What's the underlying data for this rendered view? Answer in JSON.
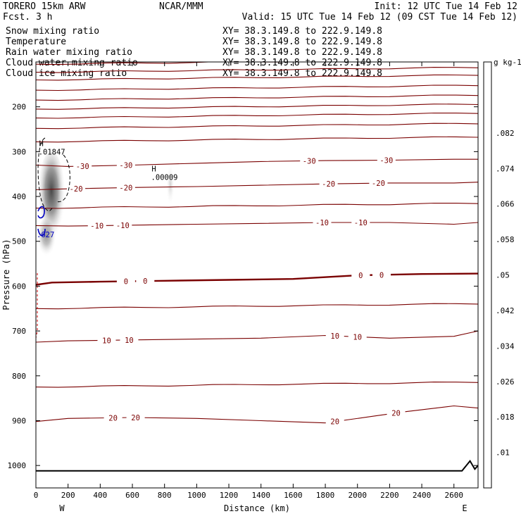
{
  "header": {
    "model": "TORERO  15km ARW",
    "forecast": "Fcst.   3 h",
    "center": "NCAR/MMM",
    "init": "Init: 12 UTC Tue 14 Feb 12",
    "valid": "Valid: 15 UTC Tue 14 Feb 12 (09 CST Tue 14 Feb 12)"
  },
  "legend": [
    {
      "label": "Snow mixing ratio",
      "color": "#000000",
      "xy": "XY=  38.3.149.8 to 222.9.149.8"
    },
    {
      "label": "Temperature",
      "color": "#b00000",
      "xy": "XY=  38.3.149.8 to 222.9.149.8"
    },
    {
      "label": "Rain water mixing ratio",
      "color": "#d00000",
      "xy": "XY=  38.3.149.8 to 222.9.149.8"
    },
    {
      "label": "Cloud water mixing ratio",
      "color": "#0000c0",
      "xy": "XY=  38.3.149.8 to 222.9.149.8"
    },
    {
      "label": "Cloud ice mixing ratio",
      "color": "#000000",
      "xy": "XY=  38.3.149.8 to 222.9.149.8"
    }
  ],
  "chart_data": {
    "type": "cross-section",
    "xlabel": "Distance (km)",
    "ylabel": "Pressure (hPa)",
    "xlim": [
      0,
      2750
    ],
    "ylim": [
      1050,
      100
    ],
    "x_ticks": [
      0,
      200,
      400,
      600,
      800,
      1000,
      1200,
      1400,
      1600,
      1800,
      2000,
      2200,
      2400,
      2600
    ],
    "y_ticks": [
      200,
      300,
      400,
      500,
      600,
      700,
      800,
      900,
      1000
    ],
    "end_labels": {
      "left": "W",
      "right": "E"
    },
    "colorbar": {
      "unit": "g kg-1",
      "ticks": [
        ".01",
        ".018",
        ".026",
        ".034",
        ".042",
        ".05",
        ".058",
        ".066",
        ".074",
        ".082"
      ],
      "colors": [
        "#ffffff",
        "#f4f4f4",
        "#e6e6e6",
        "#d6d6d6",
        "#c6c6c6",
        "#b4b4b4",
        "#a2a2a2",
        "#8e8e8e",
        "#7a7a7a",
        "#646464",
        "#4e4e4e",
        "#3c3c3c"
      ]
    },
    "maxima": [
      {
        "symbol": "H",
        "value": ".01847",
        "x_km": 60,
        "p_hpa": 303
      },
      {
        "symbol": "H",
        "value": ".00009",
        "x_km": 760,
        "p_hpa": 360
      }
    ],
    "cloud_water_label": ".627",
    "temperature_contours": [
      {
        "value": -30,
        "label": "-30",
        "points": [
          [
            0,
            330
          ],
          [
            200,
            333
          ],
          [
            600,
            330
          ],
          [
            1000,
            326
          ],
          [
            1400,
            322
          ],
          [
            1800,
            320
          ],
          [
            2200,
            319
          ],
          [
            2600,
            317
          ],
          [
            2750,
            317
          ]
        ],
        "labels_at": [
          290,
          560,
          1700,
          2180
        ]
      },
      {
        "value": -20,
        "label": "-20",
        "points": [
          [
            0,
            385
          ],
          [
            200,
            383
          ],
          [
            600,
            380
          ],
          [
            1000,
            378
          ],
          [
            1400,
            375
          ],
          [
            1800,
            372
          ],
          [
            2200,
            370
          ],
          [
            2600,
            370
          ],
          [
            2750,
            368
          ]
        ],
        "labels_at": [
          250,
          560,
          1820,
          2130
        ]
      },
      {
        "value": -10,
        "label": "-10",
        "points": [
          [
            0,
            465
          ],
          [
            200,
            466
          ],
          [
            600,
            464
          ],
          [
            1000,
            462
          ],
          [
            1400,
            460
          ],
          [
            1800,
            458
          ],
          [
            2200,
            458
          ],
          [
            2600,
            462
          ],
          [
            2750,
            458
          ]
        ],
        "labels_at": [
          380,
          540,
          1780,
          2020
        ]
      },
      {
        "value": 0,
        "label": "0",
        "points": [
          [
            0,
            597
          ],
          [
            100,
            592
          ],
          [
            400,
            590
          ],
          [
            800,
            588
          ],
          [
            1200,
            586
          ],
          [
            1600,
            584
          ],
          [
            2000,
            576
          ],
          [
            2400,
            573
          ],
          [
            2750,
            572
          ]
        ],
        "labels_at": [
          560,
          680,
          2020,
          2150
        ]
      },
      {
        "value": 10,
        "label": "10",
        "points": [
          [
            0,
            725
          ],
          [
            200,
            722
          ],
          [
            600,
            720
          ],
          [
            1000,
            718
          ],
          [
            1400,
            716
          ],
          [
            1800,
            710
          ],
          [
            2200,
            716
          ],
          [
            2600,
            712
          ],
          [
            2750,
            700
          ]
        ],
        "labels_at": [
          440,
          580,
          1860,
          2000
        ]
      },
      {
        "value": 20,
        "label": "20",
        "points": [
          [
            0,
            902
          ],
          [
            200,
            895
          ],
          [
            600,
            893
          ],
          [
            1000,
            895
          ],
          [
            1400,
            900
          ],
          [
            1800,
            905
          ],
          [
            2100,
            890
          ],
          [
            2300,
            880
          ],
          [
            2600,
            867
          ],
          [
            2750,
            872
          ]
        ],
        "labels_at": [
          480,
          620,
          1860,
          2240
        ]
      }
    ],
    "unlabeled_temperature_lines_hpa": [
      105,
      123,
      140,
      163,
      185,
      205,
      225,
      248,
      278,
      426,
      650,
      825
    ],
    "terrain": [
      [
        0,
        1012
      ],
      [
        2650,
        1012
      ],
      [
        2700,
        990
      ],
      [
        2730,
        1008
      ],
      [
        2750,
        1000
      ]
    ]
  }
}
